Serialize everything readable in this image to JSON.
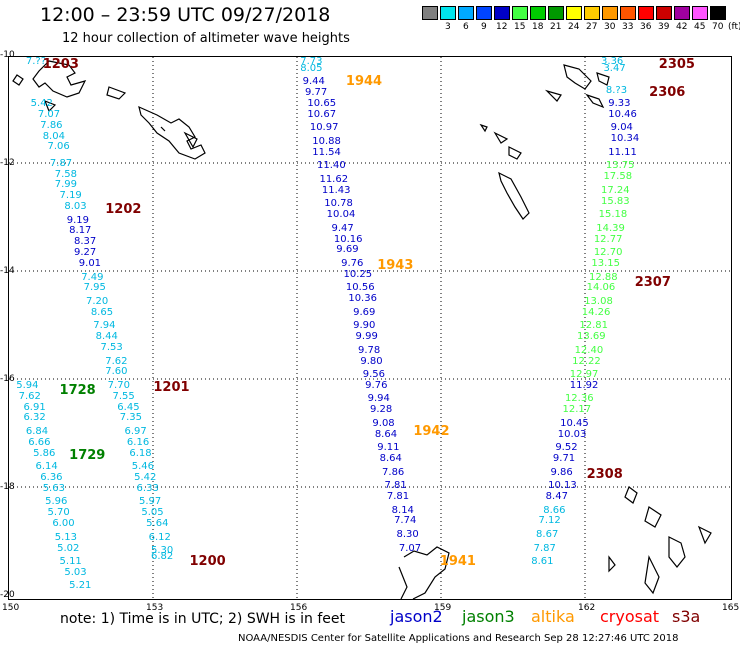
{
  "header": {
    "title": "12:00 – 23:59 UTC 09/27/2018",
    "subtitle": "12 hour collection of altimeter wave heights"
  },
  "legend": {
    "unit": "(ft)",
    "bins": [
      {
        "label": "",
        "color": "#808080"
      },
      {
        "label": "3",
        "color": "#00e5ee"
      },
      {
        "label": "6",
        "color": "#00aaff"
      },
      {
        "label": "9",
        "color": "#0044ff"
      },
      {
        "label": "12",
        "color": "#0000c8"
      },
      {
        "label": "15",
        "color": "#44ff44"
      },
      {
        "label": "18",
        "color": "#00cc00"
      },
      {
        "label": "21",
        "color": "#009900"
      },
      {
        "label": "24",
        "color": "#ffff00"
      },
      {
        "label": "27",
        "color": "#ffcc00"
      },
      {
        "label": "30",
        "color": "#ff9900"
      },
      {
        "label": "33",
        "color": "#ff5500"
      },
      {
        "label": "36",
        "color": "#ff0000"
      },
      {
        "label": "39",
        "color": "#cc0000"
      },
      {
        "label": "42",
        "color": "#a000a0"
      },
      {
        "label": "45",
        "color": "#ff55ff"
      },
      {
        "label": "70",
        "color": "#000000"
      }
    ]
  },
  "axes": {
    "lat_ticks": [
      "-10",
      "-12",
      "-14",
      "-16",
      "-18",
      "-20"
    ],
    "lon_ticks": [
      "150",
      "153",
      "156",
      "159",
      "162",
      "165"
    ]
  },
  "colors": {
    "cyan": "#00b8e0",
    "blue": "#0000c8",
    "green": "#33cc33",
    "dark_green": "#008000",
    "orange": "#ff9900",
    "dark_red": "#800000"
  },
  "tracks": [
    {
      "color": "#00b8e0",
      "points": [
        [
          "7.??",
          150.35,
          -10.05
        ],
        [
          "5.42",
          150.45,
          -10.85
        ],
        [
          "7.07",
          150.6,
          -11.05
        ],
        [
          "7.86",
          150.65,
          -11.25
        ],
        [
          "8.04",
          150.7,
          -11.45
        ],
        [
          "7.06",
          150.8,
          -11.65
        ],
        [
          "7.87",
          150.85,
          -11.95
        ],
        [
          "7.58",
          150.95,
          -12.15
        ],
        [
          "7.99",
          150.95,
          -12.35
        ],
        [
          "7.19",
          151.05,
          -12.55
        ],
        [
          "8.03",
          151.15,
          -12.75
        ]
      ]
    },
    {
      "color": "#0000c8",
      "points": [
        [
          "9.19",
          151.2,
          -13.0
        ],
        [
          "8.17",
          151.25,
          -13.2
        ],
        [
          "8.37",
          151.35,
          -13.4
        ],
        [
          "9.27",
          151.35,
          -13.6
        ],
        [
          "9.01",
          151.45,
          -13.8
        ]
      ]
    },
    {
      "color": "#00b8e0",
      "points": [
        [
          "7.49",
          151.5,
          -14.05
        ],
        [
          "7.95",
          151.55,
          -14.25
        ],
        [
          "7.20",
          151.6,
          -14.5
        ],
        [
          "8.65",
          151.7,
          -14.7
        ],
        [
          "7.94",
          151.75,
          -14.95
        ],
        [
          "8.44",
          151.8,
          -15.15
        ],
        [
          "7.53",
          151.9,
          -15.35
        ],
        [
          "7.62",
          152.0,
          -15.6
        ],
        [
          "7.60",
          152.0,
          -15.8
        ],
        [
          "7.70",
          152.05,
          -16.05
        ],
        [
          "7.55",
          152.15,
          -16.25
        ],
        [
          "6.45",
          152.25,
          -16.45
        ],
        [
          "7.35",
          152.3,
          -16.65
        ],
        [
          "6.97",
          152.4,
          -16.9
        ],
        [
          "6.16",
          152.45,
          -17.1
        ],
        [
          "6.18",
          152.5,
          -17.3
        ],
        [
          "5.46",
          152.55,
          -17.55
        ],
        [
          "5.42",
          152.6,
          -17.75
        ],
        [
          "6.33",
          152.65,
          -17.95
        ],
        [
          "5.97",
          152.7,
          -18.2
        ],
        [
          "5.05",
          152.75,
          -18.4
        ],
        [
          "5.64",
          152.85,
          -18.6
        ],
        [
          "6.12",
          152.9,
          -18.85
        ],
        [
          "5.30",
          152.95,
          -19.1
        ],
        [
          "6.82",
          152.95,
          -19.2
        ]
      ]
    },
    {
      "color": "#00b8e0",
      "points": [
        [
          "5.94",
          150.15,
          -16.05
        ],
        [
          "7.62",
          150.2,
          -16.25
        ],
        [
          "6.91",
          150.3,
          -16.45
        ],
        [
          "6.32",
          150.3,
          -16.65
        ],
        [
          "6.84",
          150.35,
          -16.9
        ],
        [
          "6.66",
          150.4,
          -17.1
        ],
        [
          "5.86",
          150.5,
          -17.3
        ],
        [
          "6.14",
          150.55,
          -17.55
        ],
        [
          "6.36",
          150.65,
          -17.75
        ],
        [
          "5.63",
          150.7,
          -17.95
        ],
        [
          "5.96",
          150.75,
          -18.2
        ],
        [
          "5.70",
          150.8,
          -18.4
        ],
        [
          "6.00",
          150.9,
          -18.6
        ],
        [
          "5.13",
          150.95,
          -18.85
        ],
        [
          "5.02",
          151.0,
          -19.05
        ],
        [
          "5.11",
          151.05,
          -19.3
        ],
        [
          "5.03",
          151.15,
          -19.5
        ],
        [
          "5.21",
          151.25,
          -19.75
        ]
      ]
    },
    {
      "color": "#00b8e0",
      "points": [
        [
          "7.73",
          156.05,
          -10.0
        ],
        [
          "8.05",
          156.05,
          -10.2
        ]
      ]
    },
    {
      "color": "#0000c8",
      "points": [
        [
          "9.44",
          156.1,
          -10.45
        ],
        [
          "9.77",
          156.15,
          -10.65
        ],
        [
          "10.65",
          156.2,
          -10.85
        ],
        [
          "10.67",
          156.2,
          -11.05
        ],
        [
          "10.97",
          156.25,
          -11.3
        ],
        [
          "10.88",
          156.3,
          -11.55
        ],
        [
          "11.54",
          156.3,
          -11.75
        ],
        [
          "11.40",
          156.4,
          -12.0
        ],
        [
          "11.62",
          156.45,
          -12.25
        ],
        [
          "11.43",
          156.5,
          -12.45
        ],
        [
          "10.78",
          156.55,
          -12.7
        ],
        [
          "10.04",
          156.6,
          -12.9
        ],
        [
          "9.47",
          156.7,
          -13.15
        ],
        [
          "10.16",
          156.75,
          -13.35
        ],
        [
          "9.69",
          156.8,
          -13.55
        ],
        [
          "9.76",
          156.9,
          -13.8
        ],
        [
          "10.25",
          156.95,
          -14.0
        ],
        [
          "10.56",
          157.0,
          -14.25
        ],
        [
          "10.36",
          157.05,
          -14.45
        ],
        [
          "9.69",
          157.15,
          -14.7
        ],
        [
          "9.90",
          157.15,
          -14.95
        ],
        [
          "9.99",
          157.2,
          -15.15
        ],
        [
          "9.78",
          157.25,
          -15.4
        ],
        [
          "9.80",
          157.3,
          -15.6
        ],
        [
          "9.56",
          157.35,
          -15.85
        ],
        [
          "9.76",
          157.4,
          -16.05
        ],
        [
          "9.94",
          157.45,
          -16.3
        ],
        [
          "9.28",
          157.5,
          -16.5
        ],
        [
          "9.08",
          157.55,
          -16.75
        ],
        [
          "8.64",
          157.6,
          -16.95
        ],
        [
          "9.11",
          157.65,
          -17.2
        ],
        [
          "8.64",
          157.7,
          -17.4
        ],
        [
          "7.86",
          157.75,
          -17.65
        ],
        [
          "7.81",
          157.8,
          -17.9
        ],
        [
          "7.81",
          157.85,
          -18.1
        ],
        [
          "8.14",
          157.95,
          -18.35
        ],
        [
          "7.74",
          158.0,
          -18.55
        ],
        [
          "8.30",
          158.05,
          -18.8
        ],
        [
          "7.07",
          158.1,
          -19.05
        ]
      ]
    },
    {
      "color": "#00b8e0",
      "points": [
        [
          "3.36",
          162.3,
          -10.0
        ],
        [
          "3.47",
          162.35,
          -10.2
        ],
        [
          "8.?3",
          162.4,
          -10.6
        ]
      ]
    },
    {
      "color": "#0000c8",
      "points": [
        [
          "9.33",
          162.45,
          -10.85
        ],
        [
          "10.46",
          162.45,
          -11.05
        ],
        [
          "9.04",
          162.5,
          -11.3
        ],
        [
          "10.34",
          162.5,
          -11.5
        ],
        [
          "11.11",
          162.45,
          -11.75
        ]
      ]
    },
    {
      "color": "#44ff44",
      "points": [
        [
          "13.75",
          162.4,
          -12.0
        ],
        [
          "17.58",
          162.35,
          -12.2
        ],
        [
          "17.24",
          162.3,
          -12.45
        ],
        [
          "15.83",
          162.3,
          -12.65
        ],
        [
          "15.18",
          162.25,
          -12.9
        ],
        [
          "14.39",
          162.2,
          -13.15
        ],
        [
          "12.77",
          162.15,
          -13.35
        ],
        [
          "12.70",
          162.15,
          -13.6
        ],
        [
          "13.15",
          162.1,
          -13.8
        ],
        [
          "12.88",
          162.05,
          -14.05
        ],
        [
          "14.06",
          162.0,
          -14.25
        ],
        [
          "13.08",
          161.95,
          -14.5
        ],
        [
          "14.26",
          161.9,
          -14.7
        ],
        [
          "12.81",
          161.85,
          -14.95
        ],
        [
          "13.69",
          161.8,
          -15.15
        ],
        [
          "12.40",
          161.75,
          -15.4
        ],
        [
          "12.22",
          161.7,
          -15.6
        ],
        [
          "12.97",
          161.65,
          -15.85
        ]
      ]
    },
    {
      "color": "#0000c8",
      "points": [
        [
          "11.92",
          161.65,
          -16.05
        ]
      ]
    },
    {
      "color": "#44ff44",
      "points": [
        [
          "12.36",
          161.55,
          -16.3
        ],
        [
          "12.17",
          161.5,
          -16.5
        ]
      ]
    },
    {
      "color": "#0000c8",
      "points": [
        [
          "10.45",
          161.45,
          -16.75
        ],
        [
          "10.03",
          161.4,
          -16.95
        ],
        [
          "9.52",
          161.35,
          -17.2
        ],
        [
          "9.71",
          161.3,
          -17.4
        ],
        [
          "9.86",
          161.25,
          -17.65
        ],
        [
          "10.13",
          161.2,
          -17.9
        ],
        [
          "8.47",
          161.15,
          -18.1
        ]
      ]
    },
    {
      "color": "#00b8e0",
      "points": [
        [
          "8.66",
          161.1,
          -18.35
        ],
        [
          "7.12",
          161.0,
          -18.55
        ],
        [
          "8.67",
          160.95,
          -18.8
        ],
        [
          "7.87",
          160.9,
          -19.05
        ],
        [
          "8.61",
          160.85,
          -19.3
        ]
      ]
    }
  ],
  "time_labels": [
    {
      "text": "1203",
      "color": "#800000",
      "lon": 150.7,
      "lat": -10.0
    },
    {
      "text": "1944",
      "color": "#ff9900",
      "lon": 157.0,
      "lat": -10.35
    },
    {
      "text": "2305",
      "color": "#800000",
      "lon": 163.5,
      "lat": -10.0
    },
    {
      "text": "2306",
      "color": "#800000",
      "lon": 163.3,
      "lat": -10.55
    },
    {
      "text": "1202",
      "color": "#800000",
      "lon": 152.0,
      "lat": -12.72
    },
    {
      "text": "1943",
      "color": "#ff9900",
      "lon": 157.65,
      "lat": -13.75
    },
    {
      "text": "2307",
      "color": "#800000",
      "lon": 163.0,
      "lat": -14.05
    },
    {
      "text": "1728",
      "color": "#008000",
      "lon": 151.05,
      "lat": -16.05
    },
    {
      "text": "1201",
      "color": "#800000",
      "lon": 153.0,
      "lat": -16.0
    },
    {
      "text": "1942",
      "color": "#ff9900",
      "lon": 158.4,
      "lat": -16.8
    },
    {
      "text": "1729",
      "color": "#008000",
      "lon": 151.25,
      "lat": -17.25
    },
    {
      "text": "2308",
      "color": "#800000",
      "lon": 162.0,
      "lat": -17.6
    },
    {
      "text": "1200",
      "color": "#800000",
      "lon": 153.75,
      "lat": -19.2
    },
    {
      "text": "1941",
      "color": "#ff9900",
      "lon": 158.95,
      "lat": -19.2
    }
  ],
  "note": "note:  1) Time is in UTC;  2) SWH is in feet",
  "satellites": [
    {
      "name": "jason2",
      "color": "#0000c8"
    },
    {
      "name": "jason3",
      "color": "#008000"
    },
    {
      "name": "altika",
      "color": "#ff9900"
    },
    {
      "name": "cryosat",
      "color": "#ff0000"
    },
    {
      "name": "s3a",
      "color": "#800000"
    }
  ],
  "footer": "NOAA/NESDIS Center for Satellite Applications and Research   Sep 28 12:27:46 UTC 2018"
}
